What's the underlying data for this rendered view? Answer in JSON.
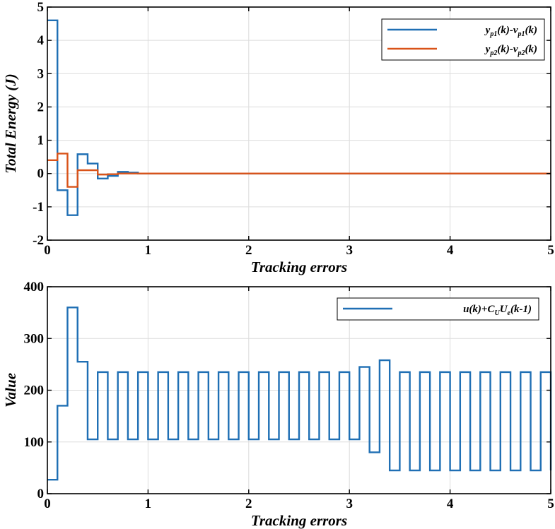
{
  "chart_data": [
    {
      "type": "line",
      "style": "step",
      "xlabel": "Tracking errors",
      "ylabel": "Total Energy (J)",
      "xlim": [
        0,
        5
      ],
      "ylim": [
        -2,
        5
      ],
      "x_ticks": [
        "0",
        "1",
        "2",
        "3",
        "4",
        "5"
      ],
      "y_ticks": [
        "-2",
        "-1",
        "0",
        "1",
        "2",
        "3",
        "4",
        "5"
      ],
      "grid": true,
      "legend_position": "top-right",
      "series": [
        {
          "name": "y_p1(k)-v_p1(k)",
          "legend_main": [
            "y",
            "p1",
            "(k)-v",
            "p1",
            "(k)"
          ],
          "color": "#1f6fb4",
          "x": [
            0,
            0.1,
            0.2,
            0.3,
            0.4,
            0.5,
            0.6,
            0.7,
            0.8,
            0.9,
            1.0,
            5.0
          ],
          "y": [
            4.6,
            -0.5,
            -1.25,
            0.58,
            0.3,
            -0.15,
            -0.07,
            0.05,
            0.03,
            0.0,
            0.0,
            0.0
          ]
        },
        {
          "name": "y_p2(k)-v_p2(k)",
          "legend_main": [
            "y",
            "p2",
            "(k)-v",
            "p2",
            "(k)"
          ],
          "color": "#d95319",
          "x": [
            0,
            0.1,
            0.2,
            0.3,
            0.4,
            0.5,
            0.6,
            0.7,
            0.8,
            0.9,
            1.0,
            5.0
          ],
          "y": [
            0.4,
            0.6,
            -0.4,
            0.1,
            0.1,
            -0.03,
            -0.02,
            0.0,
            0.0,
            0.0,
            0.0,
            0.0
          ]
        }
      ]
    },
    {
      "type": "line",
      "style": "step",
      "xlabel": "Tracking errors",
      "ylabel": "Value",
      "xlim": [
        0,
        5
      ],
      "ylim": [
        0,
        400
      ],
      "x_ticks": [
        "0",
        "1",
        "2",
        "3",
        "4",
        "5"
      ],
      "y_ticks": [
        "0",
        "100",
        "200",
        "300",
        "400"
      ],
      "grid": true,
      "legend_position": "top-right",
      "series": [
        {
          "name": "u(k)+C_U U_e(k-1)",
          "legend_main": [
            "u(k)+C",
            "U",
            "U",
            "e",
            "(k-1)"
          ],
          "color": "#1f6fb4",
          "x": [
            0,
            0.1,
            0.2,
            0.3,
            0.4,
            0.5,
            0.6,
            0.7,
            0.8,
            0.9,
            1.0,
            1.1,
            1.2,
            1.3,
            1.4,
            1.5,
            1.6,
            1.7,
            1.8,
            1.9,
            2.0,
            2.1,
            2.2,
            2.3,
            2.4,
            2.5,
            2.6,
            2.7,
            2.8,
            2.9,
            3.0,
            3.1,
            3.2,
            3.3,
            3.4,
            3.5,
            3.6,
            3.7,
            3.8,
            3.9,
            4.0,
            4.1,
            4.2,
            4.3,
            4.4,
            4.5,
            4.6,
            4.7,
            4.8,
            4.9,
            5.0
          ],
          "y": [
            27,
            170,
            360,
            255,
            105,
            235,
            105,
            235,
            105,
            235,
            105,
            235,
            105,
            235,
            105,
            235,
            105,
            235,
            105,
            235,
            105,
            235,
            105,
            235,
            105,
            235,
            105,
            235,
            105,
            235,
            105,
            245,
            80,
            258,
            45,
            235,
            45,
            235,
            45,
            235,
            45,
            235,
            45,
            235,
            45,
            235,
            45,
            235,
            45,
            235,
            45
          ]
        }
      ]
    }
  ]
}
